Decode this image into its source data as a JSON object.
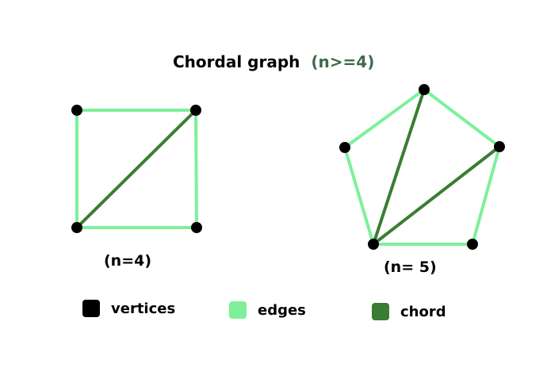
{
  "title": {
    "main": "Chordal graph",
    "condition": "(n>=4)"
  },
  "graphs": {
    "square": {
      "label": "(n=4)"
    },
    "pentagon": {
      "label": "(n= 5)"
    }
  },
  "legend": {
    "vertices": "vertices",
    "edges": "edges",
    "chord": "chord"
  },
  "colors": {
    "vertex": "#000000",
    "edge": "#7ef09a",
    "chord": "#3a7d32",
    "condition_text": "#3e6b4a"
  }
}
